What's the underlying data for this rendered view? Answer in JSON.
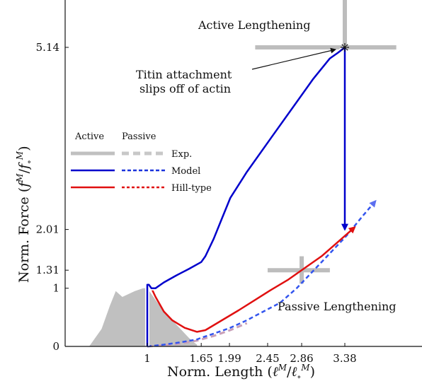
{
  "chart_data": {
    "type": "line",
    "xlabel": "Norm. Length (ℓ^M/ℓ∘^M)",
    "ylabel": "Norm. Force (f^M/f∘^M)",
    "xlim": [
      0.0,
      4.0
    ],
    "ylim": [
      0.0,
      6.0
    ],
    "x_ticks": [
      1,
      1.65,
      1.99,
      2.45,
      2.86,
      3.38
    ],
    "x_tick_labels": [
      "1",
      "1.65",
      "1.99",
      "2.45",
      "2.86",
      "3.38"
    ],
    "y_ticks": [
      0,
      1,
      1.31,
      2.01,
      5.14
    ],
    "y_tick_labels": [
      "0",
      "1",
      "1.31",
      "2.01",
      "5.14"
    ],
    "grid": false,
    "legend": {
      "placement": "middle-left",
      "headers": [
        "Active",
        "Passive"
      ],
      "entries": [
        "Exp.",
        "Model",
        "Hill-type"
      ]
    },
    "annotations": {
      "active_title": "Active Lengthening",
      "passive_title": "Passive Lengthening",
      "titin_line1": "Titin attachment",
      "titin_line2": "slips off of actin"
    },
    "experimental_area": {
      "name": "Exp.",
      "color": "#c0c0c0",
      "x": [
        0.3,
        0.45,
        0.55,
        0.62,
        0.7,
        0.85,
        0.95,
        1.0,
        1.1,
        1.2,
        1.3,
        1.4,
        1.5,
        1.55,
        1.6
      ],
      "y": [
        0.0,
        0.3,
        0.7,
        0.95,
        0.85,
        0.95,
        1.0,
        1.0,
        0.8,
        0.6,
        0.45,
        0.3,
        0.15,
        0.08,
        0.03
      ]
    },
    "experimental_crosses": [
      {
        "name": "Exp. active",
        "color": "#bdbdbd",
        "x": 3.38,
        "y": 5.14,
        "x_range": [
          2.3,
          4.0
        ],
        "y_range": [
          4.9,
          6.0
        ]
      },
      {
        "name": "Exp. passive",
        "color": "#bdbdbd",
        "x": 2.86,
        "y": 1.31,
        "x_range": [
          2.45,
          3.2
        ],
        "y_range": [
          1.08,
          1.55
        ]
      }
    ],
    "series": [
      {
        "name": "Model",
        "style": "solid",
        "color": "#0000cc",
        "x": [
          1.0,
          1.0,
          1.02,
          1.05,
          1.1,
          1.2,
          1.35,
          1.5,
          1.65,
          1.7,
          1.8,
          1.9,
          2.0,
          2.2,
          2.5,
          2.8,
          3.0,
          3.2,
          3.3,
          3.38,
          3.38
        ],
        "y": [
          0.0,
          1.06,
          1.06,
          1.0,
          1.0,
          1.1,
          1.22,
          1.33,
          1.45,
          1.55,
          1.85,
          2.2,
          2.55,
          3.0,
          3.6,
          4.2,
          4.6,
          4.95,
          5.05,
          5.14,
          2.01
        ]
      },
      {
        "name": "Model passive",
        "style": "dashed",
        "color": "#3355ee",
        "x": [
          1.0,
          1.2,
          1.4,
          1.6,
          1.65,
          1.8,
          2.0,
          2.2,
          2.4,
          2.6,
          2.8,
          3.0,
          3.2,
          3.4,
          3.6,
          3.75
        ],
        "y": [
          0.0,
          0.03,
          0.07,
          0.12,
          0.15,
          0.22,
          0.32,
          0.45,
          0.6,
          0.75,
          1.0,
          1.3,
          1.6,
          1.9,
          2.25,
          2.5
        ]
      },
      {
        "name": "Hill-type",
        "style": "solid",
        "color": "#e01010",
        "x": [
          1.02,
          1.05,
          1.1,
          1.2,
          1.3,
          1.45,
          1.6,
          1.7,
          1.9,
          2.1,
          2.3,
          2.5,
          2.7,
          2.9,
          3.1,
          3.3,
          3.5
        ],
        "y": [
          1.06,
          1.0,
          0.85,
          0.6,
          0.45,
          0.32,
          0.25,
          0.28,
          0.45,
          0.62,
          0.8,
          0.98,
          1.15,
          1.35,
          1.55,
          1.8,
          2.05
        ]
      },
      {
        "name": "Hill-type passive",
        "style": "dashed",
        "color": "#e03030",
        "x": [
          1.0,
          1.2,
          1.4,
          1.6,
          1.8,
          2.0,
          2.2
        ],
        "y": [
          0.0,
          0.02,
          0.05,
          0.1,
          0.18,
          0.28,
          0.4
        ]
      }
    ]
  }
}
